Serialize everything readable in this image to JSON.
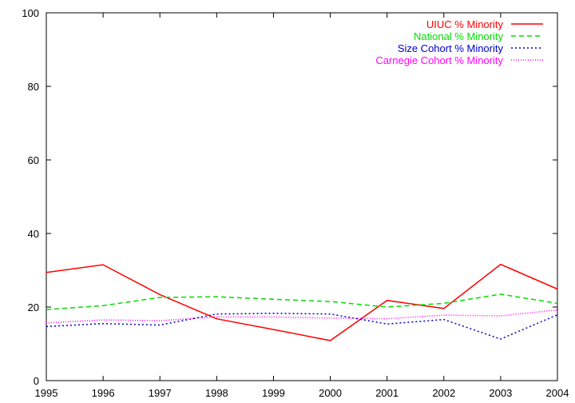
{
  "chart_data": {
    "type": "line",
    "title": "",
    "xlabel": "",
    "ylabel": "",
    "x": [
      1995,
      1996,
      1997,
      1998,
      1999,
      2000,
      2001,
      2002,
      2003,
      2004
    ],
    "xlim": [
      1995,
      2004
    ],
    "ylim": [
      0,
      100
    ],
    "xticks": [
      "1995",
      "1996",
      "1997",
      "1998",
      "1999",
      "2000",
      "2001",
      "2002",
      "2003",
      "2004"
    ],
    "yticks": [
      "0",
      "20",
      "40",
      "60",
      "80",
      "100"
    ],
    "grid": false,
    "legend_position": "top-right",
    "series": [
      {
        "name": "UIUC % Minority",
        "color": "#ff0000",
        "dash": "solid",
        "values": [
          29.4,
          31.5,
          23.4,
          16.8,
          13.9,
          10.9,
          21.8,
          19.6,
          31.6,
          24.9
        ]
      },
      {
        "name": "National % Minority",
        "color": "#00dd00",
        "dash": "dashed",
        "values": [
          19.3,
          20.4,
          22.6,
          22.8,
          22.1,
          21.5,
          20.0,
          21.0,
          23.5,
          21.0
        ]
      },
      {
        "name": "Size Cohort % Minority",
        "color": "#0000cc",
        "dash": "dotted",
        "values": [
          14.7,
          15.5,
          15.1,
          18.1,
          18.3,
          18.1,
          15.4,
          16.6,
          11.3,
          17.9
        ]
      },
      {
        "name": "Carnegie Cohort % Minority",
        "color": "#ff00ff",
        "dash": "finedotted",
        "values": [
          15.7,
          16.5,
          16.3,
          17.3,
          17.3,
          17.0,
          16.8,
          17.8,
          17.6,
          19.2
        ]
      }
    ]
  }
}
